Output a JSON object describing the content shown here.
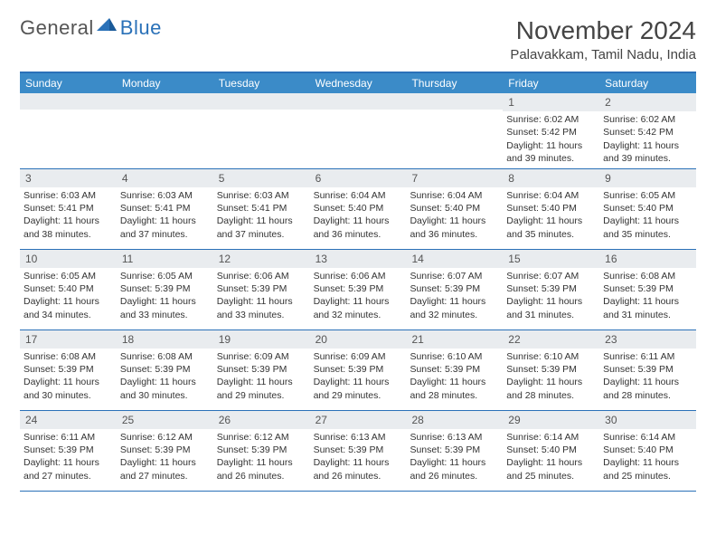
{
  "brand": {
    "part1": "General",
    "part2": "Blue"
  },
  "title": "November 2024",
  "location": "Palavakkam, Tamil Nadu, India",
  "colors": {
    "header_bar": "#3b8bc8",
    "border": "#2a71b8",
    "daynum_bg": "#e9ecef",
    "text": "#333333",
    "logo_gray": "#555555",
    "logo_blue": "#2a71b8",
    "background": "#ffffff"
  },
  "dow": [
    "Sunday",
    "Monday",
    "Tuesday",
    "Wednesday",
    "Thursday",
    "Friday",
    "Saturday"
  ],
  "weeks": [
    [
      {
        "n": "",
        "sr": "",
        "ss": "",
        "dl": ""
      },
      {
        "n": "",
        "sr": "",
        "ss": "",
        "dl": ""
      },
      {
        "n": "",
        "sr": "",
        "ss": "",
        "dl": ""
      },
      {
        "n": "",
        "sr": "",
        "ss": "",
        "dl": ""
      },
      {
        "n": "",
        "sr": "",
        "ss": "",
        "dl": ""
      },
      {
        "n": "1",
        "sr": "Sunrise: 6:02 AM",
        "ss": "Sunset: 5:42 PM",
        "dl": "Daylight: 11 hours and 39 minutes."
      },
      {
        "n": "2",
        "sr": "Sunrise: 6:02 AM",
        "ss": "Sunset: 5:42 PM",
        "dl": "Daylight: 11 hours and 39 minutes."
      }
    ],
    [
      {
        "n": "3",
        "sr": "Sunrise: 6:03 AM",
        "ss": "Sunset: 5:41 PM",
        "dl": "Daylight: 11 hours and 38 minutes."
      },
      {
        "n": "4",
        "sr": "Sunrise: 6:03 AM",
        "ss": "Sunset: 5:41 PM",
        "dl": "Daylight: 11 hours and 37 minutes."
      },
      {
        "n": "5",
        "sr": "Sunrise: 6:03 AM",
        "ss": "Sunset: 5:41 PM",
        "dl": "Daylight: 11 hours and 37 minutes."
      },
      {
        "n": "6",
        "sr": "Sunrise: 6:04 AM",
        "ss": "Sunset: 5:40 PM",
        "dl": "Daylight: 11 hours and 36 minutes."
      },
      {
        "n": "7",
        "sr": "Sunrise: 6:04 AM",
        "ss": "Sunset: 5:40 PM",
        "dl": "Daylight: 11 hours and 36 minutes."
      },
      {
        "n": "8",
        "sr": "Sunrise: 6:04 AM",
        "ss": "Sunset: 5:40 PM",
        "dl": "Daylight: 11 hours and 35 minutes."
      },
      {
        "n": "9",
        "sr": "Sunrise: 6:05 AM",
        "ss": "Sunset: 5:40 PM",
        "dl": "Daylight: 11 hours and 35 minutes."
      }
    ],
    [
      {
        "n": "10",
        "sr": "Sunrise: 6:05 AM",
        "ss": "Sunset: 5:40 PM",
        "dl": "Daylight: 11 hours and 34 minutes."
      },
      {
        "n": "11",
        "sr": "Sunrise: 6:05 AM",
        "ss": "Sunset: 5:39 PM",
        "dl": "Daylight: 11 hours and 33 minutes."
      },
      {
        "n": "12",
        "sr": "Sunrise: 6:06 AM",
        "ss": "Sunset: 5:39 PM",
        "dl": "Daylight: 11 hours and 33 minutes."
      },
      {
        "n": "13",
        "sr": "Sunrise: 6:06 AM",
        "ss": "Sunset: 5:39 PM",
        "dl": "Daylight: 11 hours and 32 minutes."
      },
      {
        "n": "14",
        "sr": "Sunrise: 6:07 AM",
        "ss": "Sunset: 5:39 PM",
        "dl": "Daylight: 11 hours and 32 minutes."
      },
      {
        "n": "15",
        "sr": "Sunrise: 6:07 AM",
        "ss": "Sunset: 5:39 PM",
        "dl": "Daylight: 11 hours and 31 minutes."
      },
      {
        "n": "16",
        "sr": "Sunrise: 6:08 AM",
        "ss": "Sunset: 5:39 PM",
        "dl": "Daylight: 11 hours and 31 minutes."
      }
    ],
    [
      {
        "n": "17",
        "sr": "Sunrise: 6:08 AM",
        "ss": "Sunset: 5:39 PM",
        "dl": "Daylight: 11 hours and 30 minutes."
      },
      {
        "n": "18",
        "sr": "Sunrise: 6:08 AM",
        "ss": "Sunset: 5:39 PM",
        "dl": "Daylight: 11 hours and 30 minutes."
      },
      {
        "n": "19",
        "sr": "Sunrise: 6:09 AM",
        "ss": "Sunset: 5:39 PM",
        "dl": "Daylight: 11 hours and 29 minutes."
      },
      {
        "n": "20",
        "sr": "Sunrise: 6:09 AM",
        "ss": "Sunset: 5:39 PM",
        "dl": "Daylight: 11 hours and 29 minutes."
      },
      {
        "n": "21",
        "sr": "Sunrise: 6:10 AM",
        "ss": "Sunset: 5:39 PM",
        "dl": "Daylight: 11 hours and 28 minutes."
      },
      {
        "n": "22",
        "sr": "Sunrise: 6:10 AM",
        "ss": "Sunset: 5:39 PM",
        "dl": "Daylight: 11 hours and 28 minutes."
      },
      {
        "n": "23",
        "sr": "Sunrise: 6:11 AM",
        "ss": "Sunset: 5:39 PM",
        "dl": "Daylight: 11 hours and 28 minutes."
      }
    ],
    [
      {
        "n": "24",
        "sr": "Sunrise: 6:11 AM",
        "ss": "Sunset: 5:39 PM",
        "dl": "Daylight: 11 hours and 27 minutes."
      },
      {
        "n": "25",
        "sr": "Sunrise: 6:12 AM",
        "ss": "Sunset: 5:39 PM",
        "dl": "Daylight: 11 hours and 27 minutes."
      },
      {
        "n": "26",
        "sr": "Sunrise: 6:12 AM",
        "ss": "Sunset: 5:39 PM",
        "dl": "Daylight: 11 hours and 26 minutes."
      },
      {
        "n": "27",
        "sr": "Sunrise: 6:13 AM",
        "ss": "Sunset: 5:39 PM",
        "dl": "Daylight: 11 hours and 26 minutes."
      },
      {
        "n": "28",
        "sr": "Sunrise: 6:13 AM",
        "ss": "Sunset: 5:39 PM",
        "dl": "Daylight: 11 hours and 26 minutes."
      },
      {
        "n": "29",
        "sr": "Sunrise: 6:14 AM",
        "ss": "Sunset: 5:40 PM",
        "dl": "Daylight: 11 hours and 25 minutes."
      },
      {
        "n": "30",
        "sr": "Sunrise: 6:14 AM",
        "ss": "Sunset: 5:40 PM",
        "dl": "Daylight: 11 hours and 25 minutes."
      }
    ]
  ]
}
